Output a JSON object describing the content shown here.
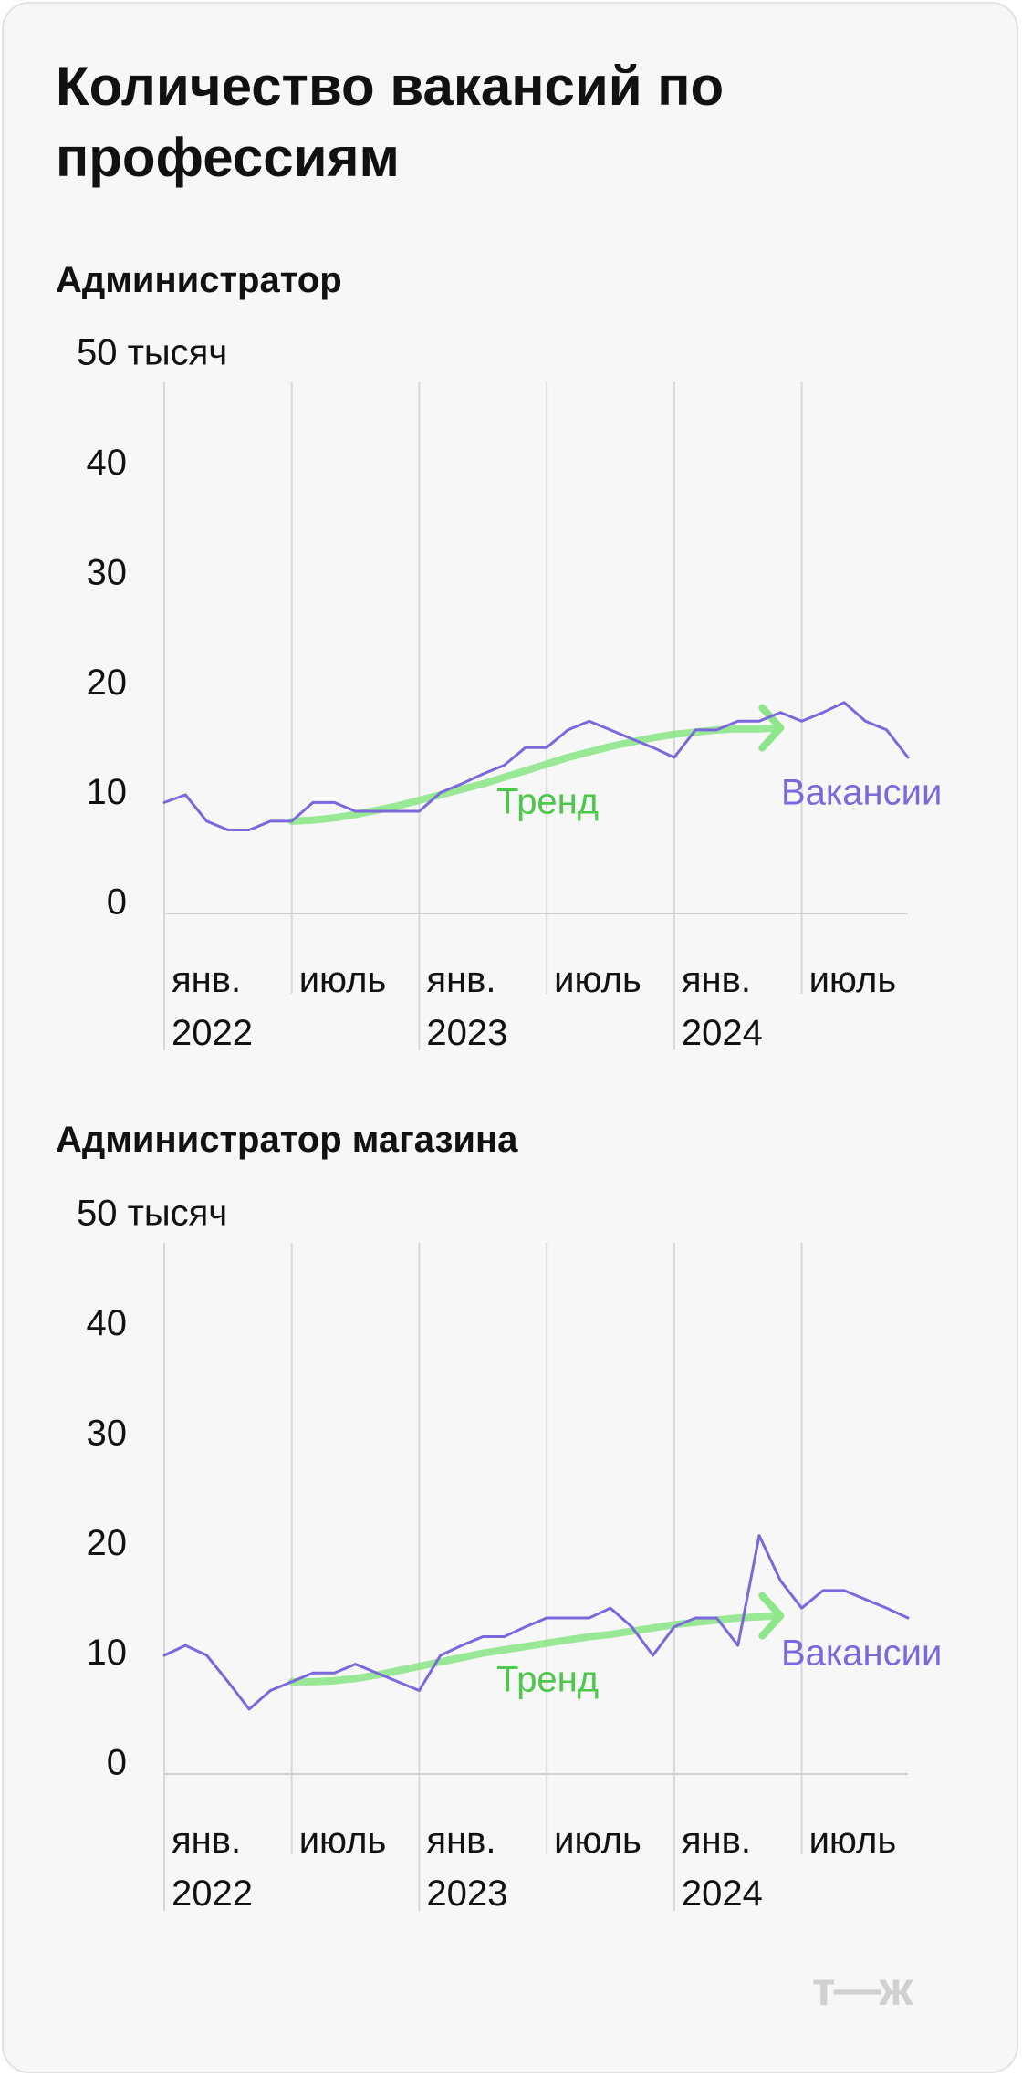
{
  "title": "Количество вакансий по профессиям",
  "logo": "т—ж",
  "chart_data": [
    {
      "type": "line",
      "title": "Администратор",
      "categories": [
        "янв. 2022",
        null,
        null,
        null,
        null,
        null,
        "июль",
        null,
        null,
        null,
        null,
        null,
        "янв. 2023",
        null,
        null,
        null,
        null,
        null,
        "июль",
        null,
        null,
        null,
        null,
        null,
        "янв. 2024",
        null,
        null,
        null,
        null,
        null,
        "июль",
        null,
        null,
        null,
        null,
        null
      ],
      "ylim": [
        0,
        50
      ],
      "yticks": [
        0,
        10,
        20,
        30,
        40,
        {
          "value": 50,
          "label": "50 тысяч"
        }
      ],
      "series": [
        {
          "name": "Вакансии",
          "color": "#7b68dd",
          "values": [
            10.1,
            10.8,
            8.4,
            7.6,
            7.6,
            8.4,
            8.4,
            10.1,
            10.1,
            9.3,
            9.3,
            9.3,
            9.3,
            11.0,
            11.8,
            12.7,
            13.5,
            15.1,
            15.1,
            16.7,
            17.5,
            16.7,
            15.9,
            15.1,
            14.2,
            16.7,
            16.7,
            17.5,
            17.5,
            18.3,
            17.5,
            18.3,
            19.2,
            17.5,
            16.7,
            14.2
          ]
        },
        {
          "name": "Тренд",
          "color": "#8ee68a",
          "values": [
            null,
            null,
            null,
            null,
            null,
            null,
            8.4,
            8.5,
            8.7,
            9.0,
            9.4,
            9.8,
            10.3,
            10.8,
            11.3,
            11.8,
            12.4,
            13.0,
            13.6,
            14.2,
            14.7,
            15.2,
            15.6,
            16.0,
            16.3,
            16.5,
            16.7,
            16.8,
            16.8,
            16.9,
            null,
            null,
            null,
            null,
            null,
            null
          ]
        }
      ]
    },
    {
      "type": "line",
      "title": "Администратор магазина",
      "categories": [
        "янв. 2022",
        null,
        null,
        null,
        null,
        null,
        "июль",
        null,
        null,
        null,
        null,
        null,
        "янв. 2023",
        null,
        null,
        null,
        null,
        null,
        "июль",
        null,
        null,
        null,
        null,
        null,
        "янв. 2024",
        null,
        null,
        null,
        null,
        null,
        "июль",
        null,
        null,
        null,
        null,
        null
      ],
      "ylim": [
        0,
        50
      ],
      "yticks": [
        0,
        10,
        20,
        30,
        40,
        {
          "value": 50,
          "label": "50 тысяч"
        }
      ],
      "series": [
        {
          "name": "Вакансии",
          "color": "#7b68dd",
          "values": [
            10.8,
            11.7,
            10.8,
            8.4,
            5.9,
            7.6,
            8.4,
            9.2,
            9.2,
            10.0,
            9.2,
            8.4,
            7.6,
            10.8,
            11.7,
            12.5,
            12.5,
            13.4,
            14.2,
            14.2,
            14.2,
            15.1,
            13.4,
            10.8,
            13.4,
            14.2,
            14.2,
            11.7,
            21.7,
            17.6,
            15.1,
            16.7,
            16.7,
            15.9,
            15.1,
            14.2
          ]
        },
        {
          "name": "Тренд",
          "color": "#8ee68a",
          "values": [
            null,
            null,
            null,
            null,
            null,
            null,
            8.4,
            8.4,
            8.5,
            8.7,
            9.0,
            9.4,
            9.8,
            10.2,
            10.6,
            11.0,
            11.3,
            11.6,
            11.9,
            12.2,
            12.5,
            12.7,
            13.0,
            13.3,
            13.6,
            13.8,
            14.0,
            14.2,
            14.3,
            14.4,
            null,
            null,
            null,
            null,
            null,
            null
          ]
        }
      ]
    }
  ]
}
